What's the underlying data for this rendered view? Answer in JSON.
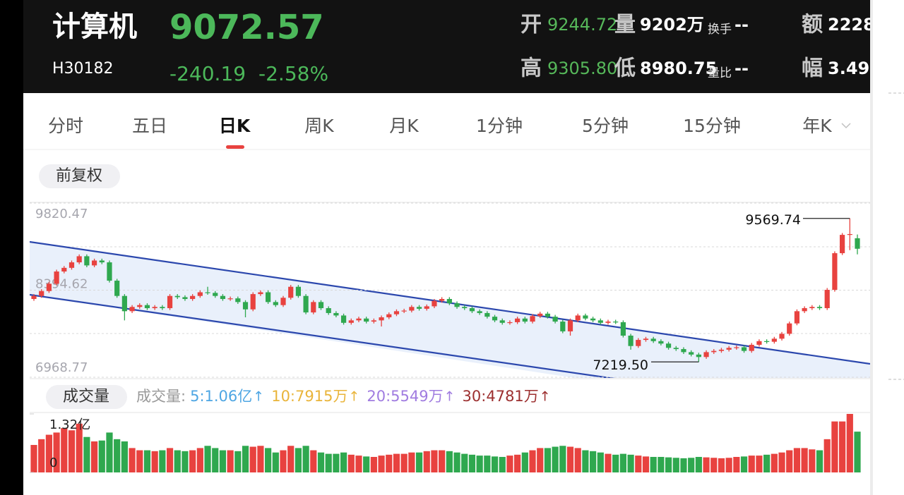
{
  "header": {
    "name": "计算机",
    "price": "9072.57",
    "code": "H30182",
    "change": "-240.19",
    "change_pct": "-2.58%",
    "stats": [
      {
        "label": "开",
        "value": "9244.72"
      },
      {
        "label": "量",
        "value": "9202万"
      },
      {
        "label": "换手",
        "value": "--"
      },
      {
        "label": "额",
        "value": "2228"
      },
      {
        "label": "高",
        "value": "9305.80"
      },
      {
        "label": "低",
        "value": "8980.75"
      },
      {
        "label": "量比",
        "value": "--"
      },
      {
        "label": "幅",
        "value": "3.49"
      }
    ]
  },
  "tabs": [
    "分时",
    "五日",
    "日K",
    "周K",
    "月K",
    "1分钟",
    "5分钟",
    "15分钟",
    "年K"
  ],
  "adjust": "前复权",
  "chart": {
    "type": "candlestick",
    "ylim": [
      6968.77,
      9820.47
    ],
    "yticks": [
      9820.47,
      8394.62,
      6968.77
    ],
    "grid": true,
    "up_color": "#e8423f",
    "down_color": "#2fa84f",
    "channel_color": "#2b47ad",
    "high_label": "9569.74",
    "low_label": "7219.50",
    "candles": [
      [
        8250,
        8330,
        8220,
        8300
      ],
      [
        8300,
        8410,
        8270,
        8380
      ],
      [
        8380,
        8530,
        8350,
        8500
      ],
      [
        8500,
        8730,
        8470,
        8700
      ],
      [
        8700,
        8790,
        8670,
        8760
      ],
      [
        8760,
        8880,
        8730,
        8850
      ],
      [
        8850,
        8980,
        8820,
        8950
      ],
      [
        8950,
        8980,
        8770,
        8800
      ],
      [
        8800,
        8910,
        8770,
        8880
      ],
      [
        8880,
        8910,
        8820,
        8850
      ],
      [
        8850,
        8880,
        8520,
        8550
      ],
      [
        8550,
        8580,
        8270,
        8300
      ],
      [
        8300,
        8330,
        7900,
        8050
      ],
      [
        8050,
        8150,
        8020,
        8120
      ],
      [
        8120,
        8180,
        8090,
        8150
      ],
      [
        8150,
        8180,
        8070,
        8100
      ],
      [
        8100,
        8150,
        8070,
        8120
      ],
      [
        8120,
        8150,
        8070,
        8100
      ],
      [
        8100,
        8330,
        8070,
        8300
      ],
      [
        8300,
        8330,
        8250,
        8280
      ],
      [
        8280,
        8310,
        8220,
        8250
      ],
      [
        8250,
        8330,
        8220,
        8300
      ],
      [
        8300,
        8390,
        8270,
        8360
      ],
      [
        8360,
        8450,
        8320,
        8350
      ],
      [
        8350,
        8380,
        8270,
        8300
      ],
      [
        8300,
        8330,
        8220,
        8250
      ],
      [
        8250,
        8290,
        8220,
        8260
      ],
      [
        8260,
        8290,
        8170,
        8200
      ],
      [
        8200,
        8230,
        7950,
        8080
      ],
      [
        8080,
        8360,
        8050,
        8330
      ],
      [
        8330,
        8390,
        8300,
        8360
      ],
      [
        8360,
        8390,
        8170,
        8200
      ],
      [
        8200,
        8230,
        8120,
        8150
      ],
      [
        8150,
        8300,
        8120,
        8270
      ],
      [
        8270,
        8480,
        8240,
        8450
      ],
      [
        8450,
        8480,
        8270,
        8300
      ],
      [
        8300,
        8330,
        8000,
        8030
      ],
      [
        8030,
        8230,
        8000,
        8200
      ],
      [
        8200,
        8230,
        8070,
        8100
      ],
      [
        8100,
        8130,
        7990,
        8020
      ],
      [
        8020,
        8050,
        7950,
        7980
      ],
      [
        7980,
        8010,
        7830,
        7860
      ],
      [
        7860,
        7930,
        7830,
        7900
      ],
      [
        7900,
        7960,
        7870,
        7930
      ],
      [
        7930,
        7960,
        7850,
        7880
      ],
      [
        7880,
        7930,
        7850,
        7900
      ],
      [
        7900,
        7980,
        7800,
        7950
      ],
      [
        7950,
        8030,
        7920,
        8000
      ],
      [
        8000,
        8080,
        7970,
        8050
      ],
      [
        8050,
        8090,
        8020,
        8060
      ],
      [
        8060,
        8150,
        8030,
        8120
      ],
      [
        8120,
        8150,
        8060,
        8090
      ],
      [
        8090,
        8160,
        8060,
        8130
      ],
      [
        8130,
        8250,
        8100,
        8220
      ],
      [
        8220,
        8280,
        8190,
        8250
      ],
      [
        8250,
        8280,
        8150,
        8180
      ],
      [
        8180,
        8210,
        8090,
        8120
      ],
      [
        8120,
        8150,
        8070,
        8100
      ],
      [
        8100,
        8130,
        8020,
        8050
      ],
      [
        8050,
        8080,
        7990,
        8020
      ],
      [
        8020,
        8050,
        7930,
        7960
      ],
      [
        7960,
        7990,
        7870,
        7900
      ],
      [
        7900,
        7930,
        7830,
        7860
      ],
      [
        7860,
        7900,
        7830,
        7870
      ],
      [
        7870,
        7960,
        7840,
        7930
      ],
      [
        7930,
        7960,
        7850,
        7880
      ],
      [
        7880,
        8000,
        7850,
        7970
      ],
      [
        7970,
        8040,
        7940,
        8010
      ],
      [
        8010,
        8040,
        7930,
        7960
      ],
      [
        7960,
        7990,
        7850,
        7880
      ],
      [
        7880,
        7910,
        7690,
        7720
      ],
      [
        7720,
        7930,
        7650,
        7900
      ],
      [
        7900,
        8010,
        7870,
        7980
      ],
      [
        7980,
        8010,
        7900,
        7930
      ],
      [
        7930,
        7960,
        7870,
        7900
      ],
      [
        7900,
        7930,
        7830,
        7860
      ],
      [
        7860,
        7910,
        7830,
        7880
      ],
      [
        7880,
        7910,
        7840,
        7870
      ],
      [
        7870,
        7900,
        7620,
        7650
      ],
      [
        7650,
        7680,
        7420,
        7480
      ],
      [
        7480,
        7610,
        7450,
        7580
      ],
      [
        7580,
        7630,
        7550,
        7600
      ],
      [
        7600,
        7630,
        7530,
        7560
      ],
      [
        7560,
        7590,
        7490,
        7520
      ],
      [
        7520,
        7550,
        7420,
        7450
      ],
      [
        7450,
        7480,
        7400,
        7430
      ],
      [
        7430,
        7460,
        7350,
        7380
      ],
      [
        7380,
        7410,
        7310,
        7340
      ],
      [
        7340,
        7370,
        7219.5,
        7300
      ],
      [
        7300,
        7410,
        7270,
        7380
      ],
      [
        7380,
        7430,
        7350,
        7400
      ],
      [
        7400,
        7450,
        7370,
        7420
      ],
      [
        7420,
        7480,
        7390,
        7450
      ],
      [
        7450,
        7490,
        7420,
        7460
      ],
      [
        7460,
        7490,
        7370,
        7400
      ],
      [
        7400,
        7530,
        7370,
        7500
      ],
      [
        7500,
        7590,
        7470,
        7560
      ],
      [
        7560,
        7590,
        7520,
        7550
      ],
      [
        7550,
        7630,
        7520,
        7600
      ],
      [
        7600,
        7710,
        7570,
        7680
      ],
      [
        7680,
        7880,
        7650,
        7850
      ],
      [
        7850,
        8080,
        7820,
        8050
      ],
      [
        8050,
        8130,
        8020,
        8100
      ],
      [
        8100,
        8150,
        8070,
        8120
      ],
      [
        8120,
        8150,
        8070,
        8100
      ],
      [
        8100,
        8430,
        8070,
        8400
      ],
      [
        8400,
        9030,
        8370,
        9000
      ],
      [
        9000,
        9330,
        8970,
        9300
      ],
      [
        9300,
        9569.74,
        9050,
        9312.76
      ],
      [
        9244.72,
        9305.8,
        8980.75,
        9072.57
      ]
    ]
  },
  "volume": {
    "button": "成交量",
    "title": "成交量:",
    "arrow": "↑",
    "ma": [
      {
        "label": "5:1.06亿",
        "color": "#4ea6e3"
      },
      {
        "label": "10:7915万",
        "color": "#e9b43a"
      },
      {
        "label": "20:5549万",
        "color": "#a07ce0"
      },
      {
        "label": "30:4781万",
        "color": "#9c2f2f"
      }
    ],
    "ylim": [
      0,
      1.32
    ],
    "yticks": [
      {
        "value": 1.32,
        "label": "1.32亿"
      },
      0
    ],
    "values": [
      0.62,
      0.75,
      0.85,
      0.9,
      1.0,
      0.95,
      1.1,
      0.8,
      0.7,
      0.72,
      0.9,
      0.75,
      0.7,
      0.55,
      0.5,
      0.5,
      0.48,
      0.5,
      0.55,
      0.5,
      0.48,
      0.5,
      0.55,
      0.6,
      0.55,
      0.5,
      0.5,
      0.48,
      0.6,
      0.58,
      0.6,
      0.55,
      0.45,
      0.5,
      0.6,
      0.55,
      0.6,
      0.5,
      0.45,
      0.42,
      0.42,
      0.45,
      0.4,
      0.38,
      0.36,
      0.35,
      0.38,
      0.4,
      0.42,
      0.42,
      0.45,
      0.45,
      0.48,
      0.5,
      0.5,
      0.48,
      0.45,
      0.42,
      0.4,
      0.38,
      0.38,
      0.36,
      0.35,
      0.38,
      0.4,
      0.45,
      0.5,
      0.55,
      0.55,
      0.58,
      0.6,
      0.58,
      0.55,
      0.5,
      0.48,
      0.45,
      0.42,
      0.4,
      0.42,
      0.4,
      0.38,
      0.36,
      0.35,
      0.35,
      0.34,
      0.33,
      0.32,
      0.33,
      0.35,
      0.34,
      0.33,
      0.32,
      0.33,
      0.35,
      0.36,
      0.38,
      0.38,
      0.4,
      0.42,
      0.45,
      0.5,
      0.55,
      0.55,
      0.52,
      0.5,
      0.75,
      1.15,
      1.15,
      1.32,
      0.92
    ]
  }
}
